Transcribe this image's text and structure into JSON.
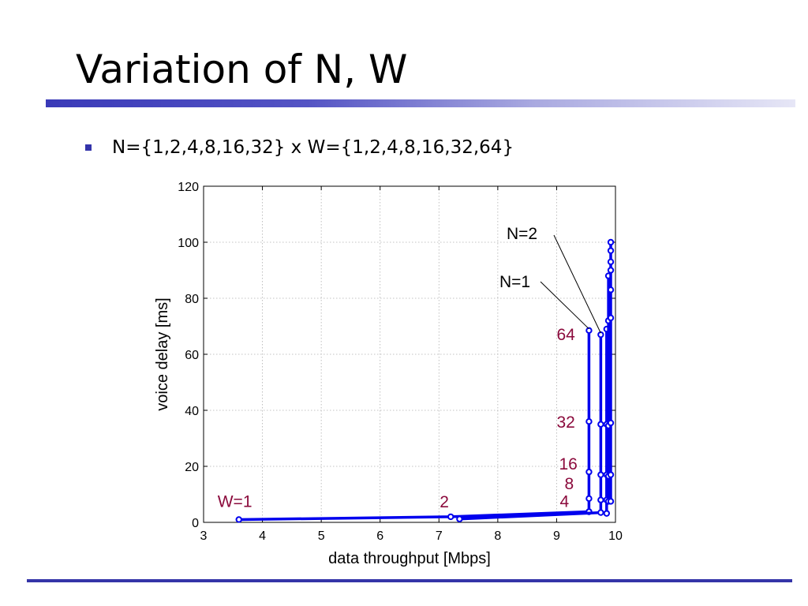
{
  "slide": {
    "title": "Variation of N, W",
    "bullet": "N={1,2,4,8,16,32} x W={1,2,4,8,16,32,64}"
  },
  "colors": {
    "title_rule_start": "#3a3ab8",
    "footer_rule": "#3434a8",
    "bullet_marker": "#3333aa",
    "series_line": "#0000ee",
    "annotation_label": "#8b0a3c"
  },
  "chart_data": {
    "type": "line",
    "xlabel": "data throughput [Mbps]",
    "ylabel": "voice delay [ms]",
    "xlim": [
      3,
      10
    ],
    "ylim": [
      0,
      120
    ],
    "xticks": [
      3,
      4,
      5,
      6,
      7,
      8,
      9,
      10
    ],
    "yticks": [
      0,
      20,
      40,
      60,
      80,
      100,
      120
    ],
    "grid": true,
    "series": [
      {
        "x": [
          3.6,
          7.2,
          9.55,
          9.55,
          9.55,
          9.55,
          9.55,
          9.55
        ],
        "y": [
          1.0,
          2.0,
          3.8,
          8.5,
          18.0,
          36.0,
          68.5,
          3.8
        ]
      },
      {
        "x": [
          7.35,
          9.75,
          9.75,
          9.75,
          9.75,
          9.75
        ],
        "y": [
          1.2,
          3.5,
          8.0,
          17.0,
          35.0,
          67.0
        ]
      },
      {
        "x": [
          9.85,
          9.85,
          9.85,
          9.85,
          9.85
        ],
        "y": [
          3.2,
          8.0,
          17.0,
          35.0,
          69.0
        ]
      },
      {
        "x": [
          9.88,
          9.88,
          9.88,
          9.88,
          9.88
        ],
        "y": [
          7.5,
          16.5,
          34.5,
          72.0,
          88.0
        ]
      },
      {
        "x": [
          9.92,
          9.92,
          9.92,
          9.92,
          9.92,
          9.92,
          9.92,
          9.92,
          9.92
        ],
        "y": [
          7.5,
          17.0,
          35.5,
          73.0,
          83.0,
          90.0,
          93.0,
          97.0,
          100.0
        ]
      }
    ],
    "annotations": [
      {
        "text": "W=1",
        "x": 3.6,
        "y": 1.0
      },
      {
        "text": "2",
        "x": 7.2,
        "y": 2.0
      },
      {
        "text": "4",
        "x": 9.55,
        "y": 3.8
      },
      {
        "text": "8",
        "x": 9.55,
        "y": 8.5
      },
      {
        "text": "16",
        "x": 9.55,
        "y": 18.0
      },
      {
        "text": "32",
        "x": 9.55,
        "y": 36.0
      },
      {
        "text": "64",
        "x": 9.55,
        "y": 68.5
      }
    ],
    "callouts": [
      {
        "text": "N=1",
        "x": 9.55,
        "y": 68.5
      },
      {
        "text": "N=2",
        "x": 9.75,
        "y": 67.0
      }
    ]
  }
}
